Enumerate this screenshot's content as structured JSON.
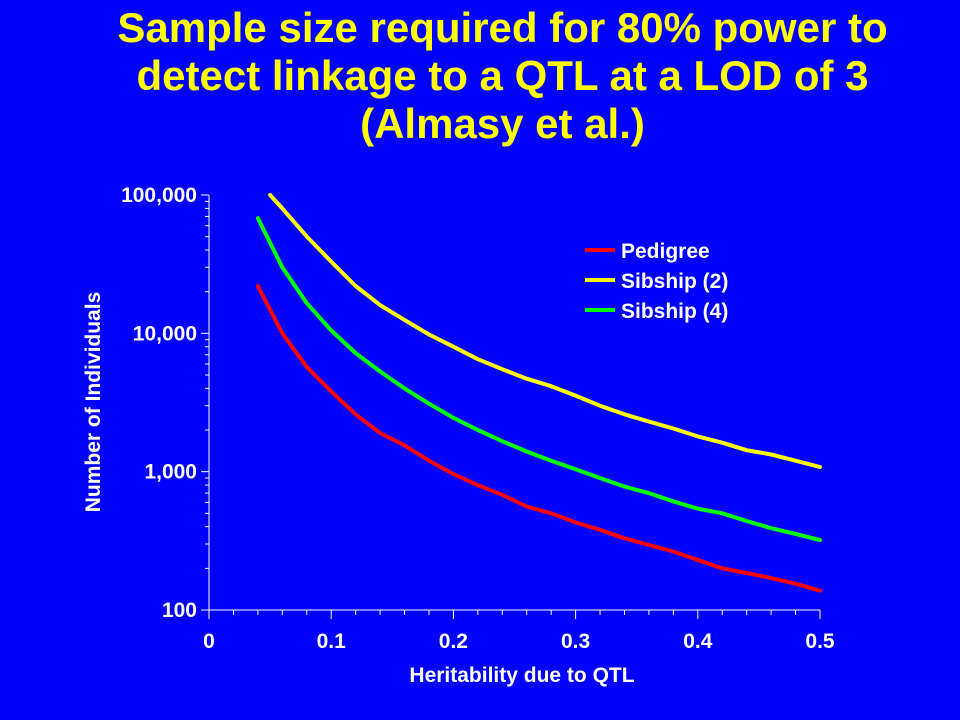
{
  "slide": {
    "title_lines": [
      "Sample size required for 80% power to",
      "detect linkage to a QTL at a LOD of 3",
      "(Almasy et al.)"
    ],
    "background_color": "#0000ff",
    "title_color": "#ffff00"
  },
  "chart_data": {
    "type": "line",
    "title": "Sample size required for 80% power to detect linkage to a QTL at a LOD of 3 (Almasy et al.)",
    "xlabel": "Heritability due to QTL",
    "ylabel": "Number of Individuals",
    "xlim": [
      0,
      0.5
    ],
    "ylim": [
      100,
      100000
    ],
    "yscale": "log",
    "x_ticks": [
      0,
      0.1,
      0.2,
      0.3,
      0.4,
      0.5
    ],
    "x_tick_labels": [
      "0",
      "0.1",
      "0.2",
      "0.3",
      "0.4",
      "0.5"
    ],
    "y_ticks": [
      100,
      1000,
      10000,
      100000
    ],
    "y_tick_labels": [
      "100",
      "1,000",
      "10,000",
      "100,000"
    ],
    "grid": false,
    "legend_position": "top-right",
    "series": [
      {
        "name": "Pedigree",
        "color": "#ff0000",
        "x": [
          0.04,
          0.06,
          0.08,
          0.1,
          0.12,
          0.14,
          0.16,
          0.18,
          0.2,
          0.22,
          0.24,
          0.26,
          0.28,
          0.3,
          0.32,
          0.34,
          0.36,
          0.38,
          0.4,
          0.42,
          0.44,
          0.46,
          0.48,
          0.5
        ],
        "values": [
          22000,
          10000,
          5700,
          3800,
          2600,
          1900,
          1550,
          1200,
          960,
          800,
          680,
          560,
          500,
          430,
          380,
          330,
          295,
          265,
          230,
          200,
          185,
          170,
          155,
          138
        ]
      },
      {
        "name": "Sibship (2)",
        "color": "#ffff00",
        "x": [
          0.05,
          0.06,
          0.08,
          0.1,
          0.12,
          0.14,
          0.16,
          0.18,
          0.2,
          0.22,
          0.24,
          0.26,
          0.28,
          0.3,
          0.32,
          0.34,
          0.36,
          0.38,
          0.4,
          0.42,
          0.44,
          0.46,
          0.48,
          0.5
        ],
        "values": [
          100000,
          80000,
          50000,
          33000,
          22000,
          16000,
          12500,
          9800,
          8000,
          6500,
          5500,
          4700,
          4150,
          3550,
          3000,
          2600,
          2300,
          2050,
          1800,
          1620,
          1430,
          1330,
          1200,
          1080
        ]
      },
      {
        "name": "Sibship (4)",
        "color": "#00ff00",
        "x": [
          0.04,
          0.06,
          0.08,
          0.1,
          0.12,
          0.14,
          0.16,
          0.18,
          0.2,
          0.22,
          0.24,
          0.26,
          0.28,
          0.3,
          0.32,
          0.34,
          0.36,
          0.38,
          0.4,
          0.42,
          0.44,
          0.46,
          0.48,
          0.5
        ],
        "values": [
          68000,
          30000,
          16500,
          10500,
          7200,
          5300,
          4000,
          3100,
          2450,
          2000,
          1660,
          1400,
          1200,
          1040,
          900,
          780,
          700,
          610,
          540,
          500,
          440,
          390,
          355,
          320
        ]
      }
    ]
  }
}
